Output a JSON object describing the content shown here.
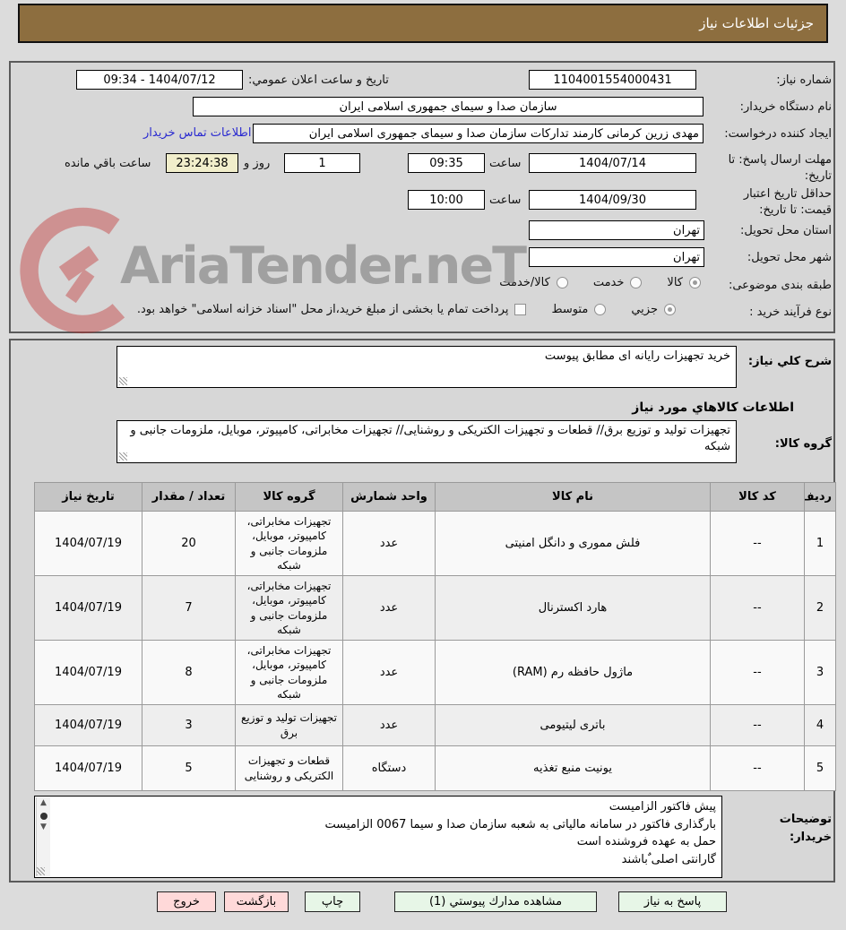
{
  "header": {
    "title": "جزئیات اطلاعات نیاز"
  },
  "form": {
    "need_number_label": "شماره نیاز:",
    "need_number": "1104001554000431",
    "announce_label": "تاریخ و ساعت اعلان عمومي:",
    "announce_value": "1404/07/12 - 09:34",
    "buyer_label": "نام دستگاه خریدار:",
    "buyer_value": "سازمان صدا و سیمای جمهوری اسلامی ایران",
    "creator_label": "ایجاد کننده درخواست:",
    "creator_value": "مهدی زرین کرمانی کارمند تدارکات سازمان صدا و سیمای جمهوری اسلامی ایران",
    "contact_link": "اطلاعات تماس خریدار",
    "deadline_label": "مهلت ارسال پاسخ: تا تاریخ:",
    "deadline_date": "1404/07/14",
    "hour_label": "ساعت",
    "deadline_time": "09:35",
    "days_value": "1",
    "days_label": "روز و",
    "countdown": "23:24:38",
    "remaining_label": "ساعت باقي مانده",
    "validity_label": "حداقل تاریخ اعتبار قیمت: تا تاریخ:",
    "validity_date": "1404/09/30",
    "validity_time": "10:00",
    "province_label": "استان محل تحویل:",
    "province_value": "تهران",
    "city_label": "شهر محل تحویل:",
    "city_value": "تهران",
    "classification": {
      "label": "طبقه بندی موضوعی:",
      "options": [
        "کالا",
        "خدمت",
        "کالا/خدمت"
      ],
      "selected": "کالا"
    },
    "process": {
      "label": "نوع فرآیند خرید :",
      "options": [
        "جزیي",
        "متوسط"
      ],
      "selected": "جزیي",
      "treasury_note": "پرداخت تمام یا بخشی از مبلغ خرید،از محل \"اسناد خزانه اسلامی\" خواهد بود."
    }
  },
  "need_section": {
    "desc_label": "شرح كلي نیاز:",
    "desc_value": "خرید تجهیزات رایانه ای مطابق پیوست",
    "items_heading": "اطلاعات كالاهاي مورد نیاز",
    "group_label": "گروه کالا:",
    "group_value": "تجهیزات تولید و توزیع برق// قطعات و تجهیزات الکتریکی و روشنایی// تجهیزات مخابراتی، کامپیوتر، موبایل، ملزومات جانبی و شبکه"
  },
  "items_table": {
    "headers": [
      "ردیف",
      "کد کالا",
      "نام کالا",
      "واحد شمارش",
      "گروه کالا",
      "تعداد / مقدار",
      "تاریخ نیاز"
    ],
    "rows": [
      [
        "1",
        "--",
        "فلش مموری و دانگل امنیتی",
        "عدد",
        "تجهیزات مخابراتی، کامپیوتر، موبایل، ملزومات جانبی و شبکه",
        "20",
        "1404/07/19"
      ],
      [
        "2",
        "--",
        "هارد اکسترنال",
        "عدد",
        "تجهیزات مخابراتی، کامپیوتر، موبایل، ملزومات جانبی و شبکه",
        "7",
        "1404/07/19"
      ],
      [
        "3",
        "--",
        "ماژول حافظه رم (RAM)",
        "عدد",
        "تجهیزات مخابراتی، کامپیوتر، موبایل، ملزومات جانبی و شبکه",
        "8",
        "1404/07/19"
      ],
      [
        "4",
        "--",
        "باتری لیتیومی",
        "عدد",
        "تجهیزات تولید و توزیع برق",
        "3",
        "1404/07/19"
      ],
      [
        "5",
        "--",
        "یونیت منبع تغذیه",
        "دستگاه",
        "قطعات و تجهیزات الکتریکی و روشنایی",
        "5",
        "1404/07/19"
      ]
    ]
  },
  "notes": {
    "label": "توضیحات خریدار:",
    "text": "پیش فاکتور الزامیست\nبارگذاری فاکتور در سامانه مالیاتی به شعبه سازمان صدا و سیما 0067 الزامیست\nحمل به عهده فروشنده است\nگارانتی اصلی ٌباشند"
  },
  "footer": {
    "reply_button": "پاسخ به نیاز",
    "attachments_button": "مشاهده مدارك پیوستي (1)",
    "print_button": "چاپ",
    "back_button": "بازگشت",
    "exit_button": "خروج"
  },
  "watermark": {
    "text": "AriaTender.neT"
  },
  "colors": {
    "header_bg": "#8d6e3f",
    "countdown_bg": "#f1eecb",
    "green_button_bg": "#e7f6e7",
    "pink_button_bg": "#ffd9d9",
    "link_color": "#2a2ad0"
  }
}
